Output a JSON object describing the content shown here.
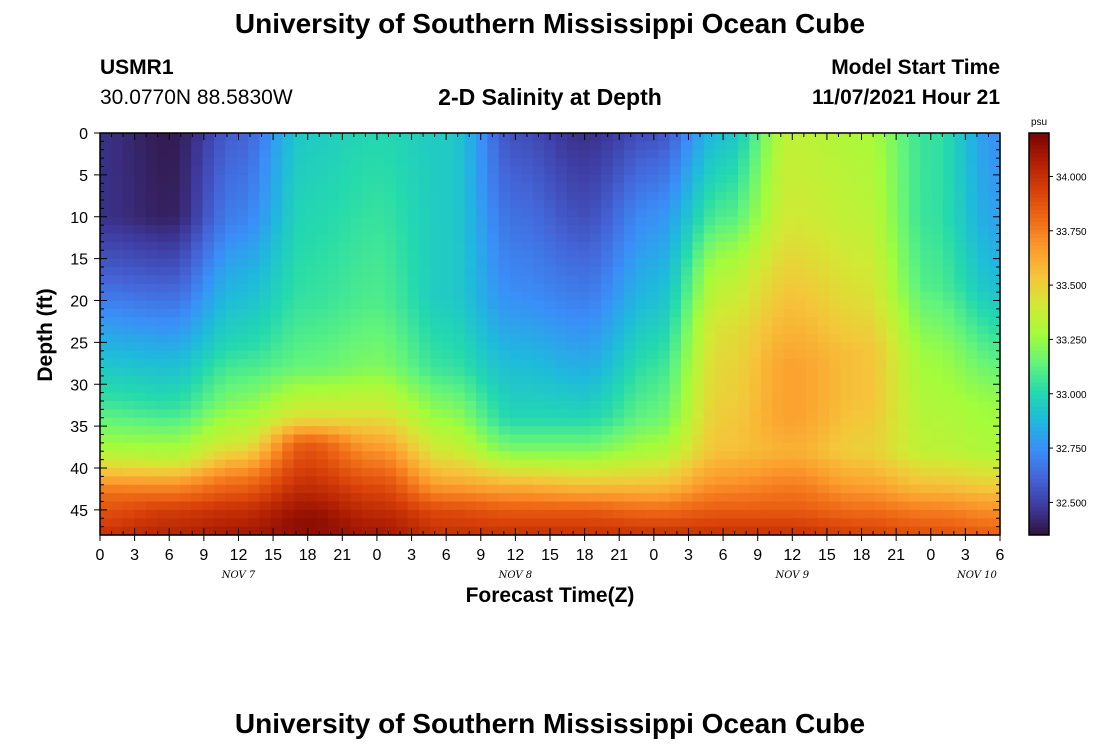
{
  "header": {
    "title": "University of Southern Mississippi Ocean Cube",
    "station": "USMR1",
    "coords": "30.0770N  88.5830W",
    "plot_title": "2-D Salinity at Depth",
    "model_label": "Model Start Time",
    "model_time": "11/07/2021 Hour 21"
  },
  "footer": {
    "title": "University of Southern Mississippi Ocean Cube"
  },
  "chart_data": {
    "type": "heatmap",
    "title": "2-D Salinity at Depth",
    "xlabel": "Forecast Time(Z)",
    "ylabel": "Depth (ft)",
    "xlim": [
      0,
      78
    ],
    "ylim": [
      0,
      48
    ],
    "y_inverted": true,
    "x_ticks": [
      0,
      3,
      6,
      9,
      12,
      15,
      18,
      21,
      24,
      27,
      30,
      33,
      36,
      39,
      42,
      45,
      48,
      51,
      54,
      57,
      60,
      63,
      66,
      69,
      72,
      75,
      78
    ],
    "x_tick_labels": [
      "0",
      "3",
      "6",
      "9",
      "12",
      "15",
      "18",
      "21",
      "0",
      "3",
      "6",
      "9",
      "12",
      "15",
      "18",
      "21",
      "0",
      "3",
      "6",
      "9",
      "12",
      "15",
      "18",
      "21",
      "0",
      "3",
      "6"
    ],
    "day_labels": [
      {
        "label": "NOV 7",
        "x": 12
      },
      {
        "label": "NOV 8",
        "x": 36
      },
      {
        "label": "NOV 9",
        "x": 60
      },
      {
        "label": "NOV 10",
        "x": 76
      }
    ],
    "y_ticks": [
      0,
      5,
      10,
      15,
      20,
      25,
      30,
      35,
      40,
      45
    ],
    "y_tick_labels": [
      "0",
      "5",
      "10",
      "15",
      "20",
      "25",
      "30",
      "35",
      "40",
      "45"
    ],
    "colorbar": {
      "unit": "psu",
      "min": 32.35,
      "max": 34.2,
      "ticks": [
        32.5,
        32.75,
        33.0,
        33.25,
        33.5,
        33.75,
        34.0
      ],
      "tick_labels": [
        "32.500",
        "32.750",
        "33.000",
        "33.250",
        "33.500",
        "33.750",
        "34.000"
      ],
      "colors": [
        "#30123b",
        "#3e3a9e",
        "#4465d8",
        "#3a8ff8",
        "#1fb9dd",
        "#24d9ae",
        "#63f47b",
        "#a4fc3b",
        "#d2e935",
        "#f5c53a",
        "#fc9b2d",
        "#f06b17",
        "#d84109",
        "#b01f03",
        "#7a0403"
      ]
    },
    "x_key_times": [
      0,
      6,
      12,
      18,
      24,
      30,
      36,
      42,
      48,
      54,
      60,
      66,
      72,
      78
    ],
    "depth_profiles": [
      [
        0,
        32.42
      ],
      [
        3,
        32.38
      ],
      [
        15,
        32.55
      ],
      [
        27,
        32.85
      ],
      [
        35,
        33.25
      ],
      [
        41,
        33.75
      ],
      [
        44,
        33.95
      ],
      [
        48,
        34.05
      ]
    ],
    "profiles_by_time": [
      {
        "t": 0,
        "profile": [
          [
            0,
            32.45
          ],
          [
            10,
            32.45
          ],
          [
            17,
            32.6
          ],
          [
            25,
            32.85
          ],
          [
            32,
            33.05
          ],
          [
            38,
            33.3
          ],
          [
            41,
            33.6
          ],
          [
            43,
            33.8
          ],
          [
            48,
            34.0
          ]
        ]
      },
      {
        "t": 6,
        "profile": [
          [
            0,
            32.38
          ],
          [
            10,
            32.4
          ],
          [
            18,
            32.6
          ],
          [
            26,
            32.85
          ],
          [
            33,
            33.05
          ],
          [
            39,
            33.35
          ],
          [
            42,
            33.7
          ],
          [
            45,
            33.95
          ],
          [
            48,
            34.05
          ]
        ]
      },
      {
        "t": 12,
        "profile": [
          [
            0,
            32.6
          ],
          [
            10,
            32.7
          ],
          [
            17,
            32.85
          ],
          [
            25,
            33.0
          ],
          [
            32,
            33.2
          ],
          [
            37,
            33.4
          ],
          [
            41,
            33.75
          ],
          [
            45,
            34.0
          ],
          [
            48,
            34.1
          ]
        ]
      },
      {
        "t": 18,
        "profile": [
          [
            0,
            32.95
          ],
          [
            10,
            33.0
          ],
          [
            20,
            33.05
          ],
          [
            28,
            33.15
          ],
          [
            34,
            33.45
          ],
          [
            37,
            33.85
          ],
          [
            42,
            34.0
          ],
          [
            46,
            34.15
          ],
          [
            48,
            34.15
          ]
        ]
      },
      {
        "t": 24,
        "profile": [
          [
            0,
            33.0
          ],
          [
            10,
            33.05
          ],
          [
            20,
            33.1
          ],
          [
            28,
            33.2
          ],
          [
            33,
            33.4
          ],
          [
            38,
            33.7
          ],
          [
            42,
            33.9
          ],
          [
            46,
            34.05
          ],
          [
            48,
            34.1
          ]
        ]
      },
      {
        "t": 30,
        "profile": [
          [
            0,
            32.95
          ],
          [
            10,
            32.95
          ],
          [
            20,
            32.95
          ],
          [
            28,
            33.05
          ],
          [
            34,
            33.25
          ],
          [
            38,
            33.4
          ],
          [
            42,
            33.65
          ],
          [
            45,
            33.9
          ],
          [
            48,
            34.0
          ]
        ]
      },
      {
        "t": 36,
        "profile": [
          [
            0,
            32.55
          ],
          [
            10,
            32.65
          ],
          [
            20,
            32.75
          ],
          [
            28,
            32.9
          ],
          [
            34,
            33.0
          ],
          [
            38,
            33.2
          ],
          [
            42,
            33.6
          ],
          [
            45,
            33.85
          ],
          [
            48,
            34.0
          ]
        ]
      },
      {
        "t": 42,
        "profile": [
          [
            0,
            32.45
          ],
          [
            10,
            32.55
          ],
          [
            20,
            32.7
          ],
          [
            28,
            32.85
          ],
          [
            34,
            33.0
          ],
          [
            38,
            33.2
          ],
          [
            42,
            33.55
          ],
          [
            45,
            33.85
          ],
          [
            48,
            34.0
          ]
        ]
      },
      {
        "t": 48,
        "profile": [
          [
            0,
            32.55
          ],
          [
            10,
            32.75
          ],
          [
            20,
            32.9
          ],
          [
            28,
            33.05
          ],
          [
            34,
            33.15
          ],
          [
            38,
            33.3
          ],
          [
            42,
            33.55
          ],
          [
            45,
            33.8
          ],
          [
            48,
            34.0
          ]
        ]
      },
      {
        "t": 54,
        "profile": [
          [
            0,
            32.9
          ],
          [
            10,
            33.1
          ],
          [
            16,
            33.3
          ],
          [
            24,
            33.45
          ],
          [
            32,
            33.5
          ],
          [
            38,
            33.55
          ],
          [
            42,
            33.7
          ],
          [
            45,
            33.85
          ],
          [
            48,
            34.0
          ]
        ]
      },
      {
        "t": 60,
        "profile": [
          [
            0,
            33.35
          ],
          [
            10,
            33.4
          ],
          [
            20,
            33.55
          ],
          [
            28,
            33.65
          ],
          [
            34,
            33.65
          ],
          [
            38,
            33.6
          ],
          [
            42,
            33.75
          ],
          [
            45,
            33.85
          ],
          [
            48,
            34.0
          ]
        ]
      },
      {
        "t": 66,
        "profile": [
          [
            0,
            33.3
          ],
          [
            10,
            33.35
          ],
          [
            20,
            33.45
          ],
          [
            26,
            33.55
          ],
          [
            32,
            33.55
          ],
          [
            38,
            33.5
          ],
          [
            42,
            33.65
          ],
          [
            45,
            33.8
          ],
          [
            48,
            33.95
          ]
        ]
      },
      {
        "t": 72,
        "profile": [
          [
            0,
            33.05
          ],
          [
            10,
            33.05
          ],
          [
            18,
            33.1
          ],
          [
            26,
            33.25
          ],
          [
            32,
            33.3
          ],
          [
            38,
            33.35
          ],
          [
            42,
            33.55
          ],
          [
            45,
            33.75
          ],
          [
            48,
            33.9
          ]
        ]
      },
      {
        "t": 78,
        "profile": [
          [
            0,
            32.75
          ],
          [
            10,
            32.8
          ],
          [
            18,
            32.9
          ],
          [
            26,
            33.1
          ],
          [
            32,
            33.25
          ],
          [
            38,
            33.3
          ],
          [
            42,
            33.5
          ],
          [
            45,
            33.7
          ],
          [
            48,
            33.85
          ]
        ]
      }
    ]
  }
}
